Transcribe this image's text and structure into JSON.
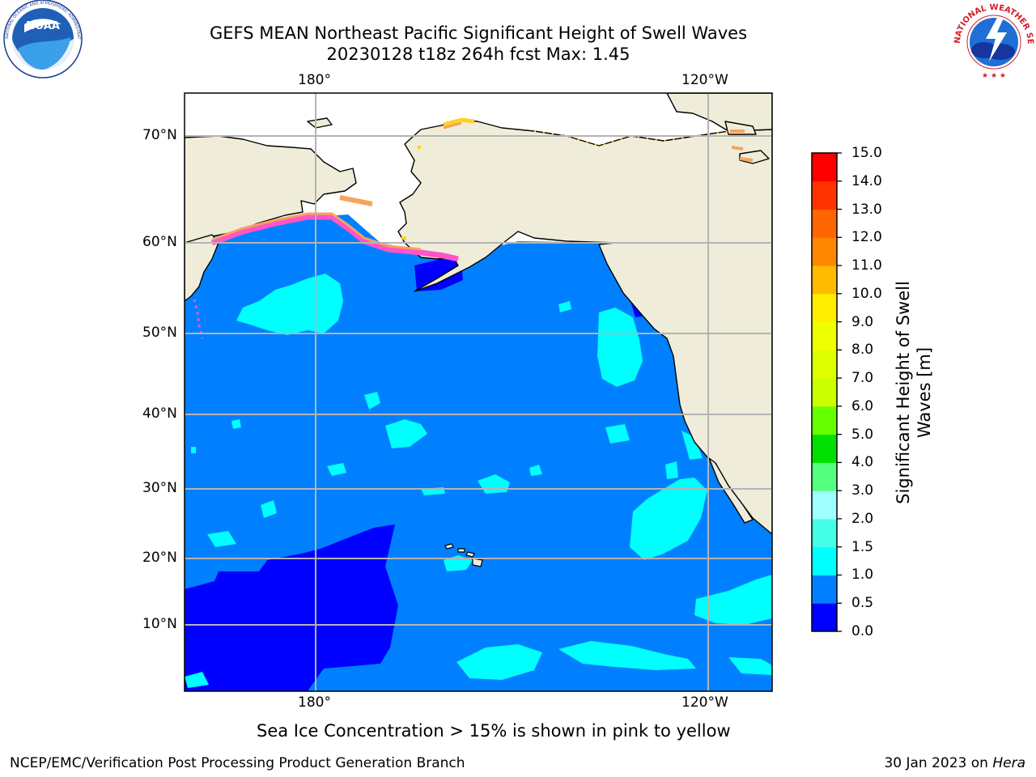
{
  "header": {
    "title_line1": "GEFS MEAN Northeast Pacific Significant Height of Swell Waves",
    "title_line2": "20230128 t18z 264h fcst   Max: 1.45"
  },
  "logos": {
    "left": {
      "name": "noaa-logo",
      "text": "NOAA",
      "ring_text": "NATIONAL OCEANIC AND ATMOSPHERIC ADMINISTRATION · U.S. DEPARTMENT OF COMMERCE"
    },
    "right": {
      "name": "nws-logo",
      "ring_text": "NATIONAL WEATHER SERVICE"
    }
  },
  "map": {
    "projection": "cylindrical",
    "lon_labels_top": [
      "180°",
      "120°W"
    ],
    "lon_labels_bottom": [
      "180°",
      "120°W"
    ],
    "lat_labels": [
      "70°N",
      "60°N",
      "50°N",
      "40°N",
      "30°N",
      "20°N",
      "10°N"
    ],
    "colors": {
      "land": "#efedda",
      "no_data": "#ffffff",
      "coast": "#000000",
      "grid": "#b4b4b4",
      "ice_pink": "#ff55c8",
      "ice_orange": "#f7a35c",
      "ice_yellow": "#ffd21e"
    }
  },
  "colorbar": {
    "label": "Significant Height of Swell Waves [m]",
    "ticks": [
      "15.0",
      "14.0",
      "13.0",
      "12.0",
      "11.0",
      "10.0",
      "9.0",
      "8.0",
      "7.0",
      "6.0",
      "5.0",
      "4.0",
      "3.0",
      "2.0",
      "1.5",
      "1.0",
      "0.5",
      "0.0"
    ],
    "bins": [
      {
        "range": "0.0-0.5",
        "color": "#0000ff"
      },
      {
        "range": "0.5-1.0",
        "color": "#0080ff"
      },
      {
        "range": "1.0-1.5",
        "color": "#00ffff"
      },
      {
        "range": "1.5-2.0",
        "color": "#44ffe8"
      },
      {
        "range": "2.0-3.0",
        "color": "#a0ffff"
      },
      {
        "range": "3.0-4.0",
        "color": "#55ff80"
      },
      {
        "range": "4.0-5.0",
        "color": "#00e000"
      },
      {
        "range": "5.0-6.0",
        "color": "#66ff00"
      },
      {
        "range": "6.0-7.0",
        "color": "#ccff00"
      },
      {
        "range": "7.0-8.0",
        "color": "#ddff00"
      },
      {
        "range": "8.0-9.0",
        "color": "#eeff00"
      },
      {
        "range": "9.0-10.0",
        "color": "#ffee00"
      },
      {
        "range": "10.0-11.0",
        "color": "#ffbb00"
      },
      {
        "range": "11.0-12.0",
        "color": "#ff8800"
      },
      {
        "range": "12.0-13.0",
        "color": "#ff6600"
      },
      {
        "range": "13.0-14.0",
        "color": "#ff3300"
      },
      {
        "range": "14.0-15.0",
        "color": "#ff0000"
      }
    ]
  },
  "note": "Sea Ice Concentration > 15% is shown in pink to yellow",
  "footer": {
    "left": "NCEP/EMC/Verification Post Processing Product Generation Branch",
    "right_date": "30 Jan 2023 on ",
    "right_host": "Hera"
  }
}
